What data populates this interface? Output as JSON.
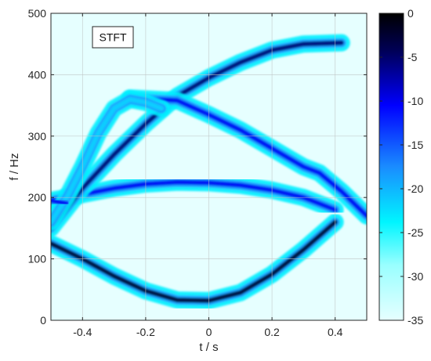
{
  "chart_data": {
    "type": "heatmap",
    "title": "",
    "xlabel": "t / s",
    "ylabel": "f / Hz",
    "xlim": [
      -0.5,
      0.5
    ],
    "ylim": [
      0,
      500
    ],
    "xticks": [
      -0.4,
      -0.2,
      0,
      0.2,
      0.4
    ],
    "xtick_labels": [
      "-0.4",
      "-0.2",
      "0",
      "0.2",
      "0.4"
    ],
    "yticks": [
      0,
      100,
      200,
      300,
      400,
      500
    ],
    "ytick_labels": [
      "0",
      "100",
      "200",
      "300",
      "400",
      "500"
    ],
    "grid": true,
    "annotation": "STFT",
    "colorbar": {
      "range": [
        -35,
        0
      ],
      "ticks": [
        0,
        -5,
        -10,
        -15,
        -20,
        -25,
        -30,
        -35
      ],
      "tick_labels": [
        "0",
        "-5",
        "-10",
        "-15",
        "-20",
        "-25",
        "-30",
        "-35"
      ],
      "colormap": [
        "#e6ffff",
        "#00f5ff",
        "#1a8cff",
        "#0000ff",
        "#000033",
        "#000000"
      ]
    },
    "components": [
      {
        "shape": "parabola-upward",
        "t": [
          -0.5,
          -0.4,
          -0.3,
          -0.2,
          -0.1,
          0.0,
          0.1,
          0.2,
          0.3,
          0.4
        ],
        "f": [
          125,
          100,
          72,
          48,
          33,
          32,
          45,
          75,
          115,
          160
        ],
        "peak_db": -2
      },
      {
        "shape": "parabola-downward",
        "t": [
          -0.5,
          -0.45,
          -0.4,
          -0.3,
          -0.2,
          -0.1,
          0.0,
          0.1,
          0.2,
          0.3,
          0.4
        ],
        "f": [
          195,
          200,
          205,
          215,
          222,
          225,
          224,
          220,
          212,
          200,
          180
        ],
        "peak_db": -10
      },
      {
        "shape": "rising",
        "t": [
          -0.5,
          -0.4,
          -0.3,
          -0.2,
          -0.1,
          0.0,
          0.1,
          0.2,
          0.3,
          0.42
        ],
        "f": [
          150,
          215,
          270,
          320,
          365,
          395,
          420,
          440,
          450,
          452
        ],
        "peak_db": -5
      },
      {
        "shape": "falling",
        "t": [
          -0.25,
          -0.1,
          0.0,
          0.1,
          0.2,
          0.3,
          0.35,
          0.42,
          0.5
        ],
        "f": [
          362,
          358,
          335,
          310,
          280,
          250,
          240,
          210,
          170
        ],
        "peak_db": -10
      },
      {
        "shape": "falling-early",
        "t": [
          -0.5,
          -0.45,
          -0.4,
          -0.35,
          -0.3,
          -0.25,
          -0.2,
          -0.15
        ],
        "f": [
          160,
          200,
          250,
          305,
          345,
          360,
          355,
          345
        ],
        "peak_db": -22
      },
      {
        "shape": "tone",
        "t": [
          -0.5,
          -0.45
        ],
        "f": [
          195,
          190
        ],
        "peak_db": -10
      }
    ]
  }
}
